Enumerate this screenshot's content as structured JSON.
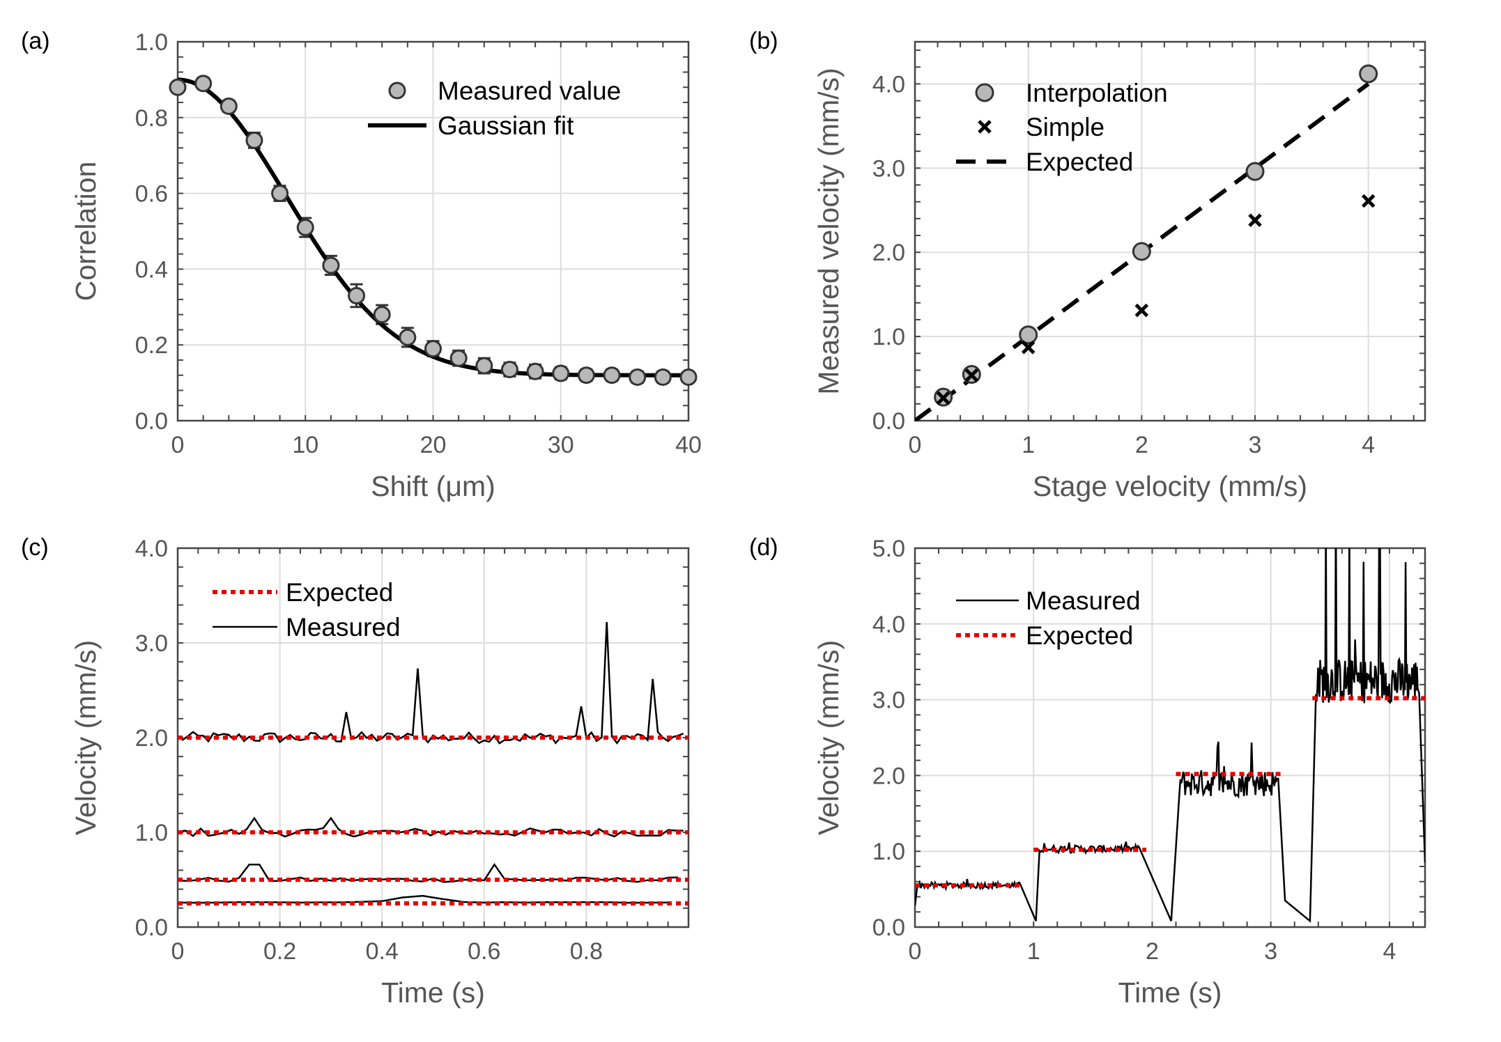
{
  "figure": {
    "panels": [
      "(a)",
      "(b)",
      "(c)",
      "(d)"
    ]
  },
  "chart_data": [
    {
      "id": "a",
      "type": "scatter",
      "panel_label": "(a)",
      "xlabel": "Shift (μm)",
      "ylabel": "Correlation",
      "xlim": [
        0,
        40
      ],
      "ylim": [
        0,
        1
      ],
      "xticks": [
        0,
        10,
        20,
        30,
        40
      ],
      "xtick_labels": [
        "0",
        "10",
        "20",
        "30",
        "40"
      ],
      "yticks": [
        0,
        0.2,
        0.4,
        0.6,
        0.8,
        1.0
      ],
      "ytick_labels": [
        "0.0",
        "0.2",
        "0.4",
        "0.6",
        "0.8",
        "1.0"
      ],
      "grid": true,
      "legend": [
        "Measured value",
        "Gaussian fit"
      ],
      "series": [
        {
          "name": "Measured value",
          "marker": "circle",
          "x": [
            0,
            2,
            4,
            6,
            8,
            10,
            12,
            14,
            16,
            18,
            20,
            22,
            24,
            26,
            28,
            30,
            32,
            34,
            36,
            38,
            40
          ],
          "y": [
            0.88,
            0.89,
            0.83,
            0.74,
            0.6,
            0.51,
            0.41,
            0.33,
            0.28,
            0.22,
            0.19,
            0.165,
            0.145,
            0.135,
            0.13,
            0.125,
            0.12,
            0.12,
            0.115,
            0.115,
            0.115
          ],
          "err": [
            0.012,
            0.015,
            0.015,
            0.02,
            0.02,
            0.025,
            0.025,
            0.03,
            0.025,
            0.025,
            0.02,
            0.02,
            0.02,
            0.018,
            0.018,
            0.016,
            0.015,
            0.015,
            0.015,
            0.015,
            0.01
          ]
        },
        {
          "name": "Gaussian fit",
          "type": "line",
          "model": "y = 0.12 + 0.78*exp(-x^2/(2*8.5^2))",
          "x": [
            0,
            2,
            4,
            6,
            8,
            10,
            12,
            14,
            16,
            18,
            20,
            22,
            24,
            26,
            28,
            30,
            32,
            34,
            36,
            38,
            40
          ],
          "y": [
            0.9,
            0.879,
            0.818,
            0.726,
            0.616,
            0.5,
            0.39,
            0.297,
            0.224,
            0.173,
            0.144,
            0.13,
            0.124,
            0.121,
            0.12,
            0.12,
            0.12,
            0.12,
            0.12,
            0.12,
            0.12
          ]
        }
      ]
    },
    {
      "id": "b",
      "type": "scatter",
      "panel_label": "(b)",
      "xlabel": "Stage velocity (mm/s)",
      "ylabel": "Measured velocity (mm/s)",
      "xlim": [
        0,
        4.5
      ],
      "ylim": [
        0,
        4.5
      ],
      "xticks": [
        0,
        1,
        2,
        3,
        4
      ],
      "xtick_labels": [
        "0",
        "1",
        "2",
        "3",
        "4"
      ],
      "yticks": [
        0,
        1,
        2,
        3,
        4
      ],
      "ytick_labels": [
        "0.0",
        "1.0",
        "2.0",
        "3.0",
        "4.0"
      ],
      "grid": true,
      "legend": [
        "Interpolation",
        "Simple",
        "Expected"
      ],
      "series": [
        {
          "name": "Interpolation",
          "marker": "circle",
          "x": [
            0.25,
            0.5,
            1,
            2,
            3,
            4
          ],
          "y": [
            0.28,
            0.55,
            1.02,
            2.01,
            2.96,
            4.12
          ]
        },
        {
          "name": "Simple",
          "marker": "x",
          "x": [
            0.25,
            0.5,
            1,
            2,
            3,
            4
          ],
          "y": [
            0.27,
            0.54,
            0.87,
            1.31,
            2.38,
            2.61
          ]
        },
        {
          "name": "Expected",
          "type": "line",
          "style": "dashed",
          "x": [
            0,
            4
          ],
          "y": [
            0,
            4
          ]
        }
      ]
    },
    {
      "id": "c",
      "type": "line",
      "panel_label": "(c)",
      "xlabel": "Time (s)",
      "ylabel": "Velocity (mm/s)",
      "xlim": [
        0,
        1
      ],
      "ylim": [
        0,
        4
      ],
      "xticks": [
        0,
        0.2,
        0.4,
        0.6,
        0.8
      ],
      "xtick_labels": [
        "0",
        "0.2",
        "0.4",
        "0.6",
        "0.8"
      ],
      "yticks": [
        0,
        1,
        2,
        3,
        4
      ],
      "ytick_labels": [
        "0.0",
        "1.0",
        "2.0",
        "3.0",
        "4.0"
      ],
      "grid": true,
      "legend": [
        "Expected",
        "Measured"
      ],
      "expected_levels": [
        2.0,
        1.0,
        0.5,
        0.25
      ],
      "measured_spikes": [
        {
          "level": 2.0,
          "t": 0.33,
          "v": 2.27
        },
        {
          "level": 2.0,
          "t": 0.47,
          "v": 2.73
        },
        {
          "level": 2.0,
          "t": 0.79,
          "v": 2.33
        },
        {
          "level": 2.0,
          "t": 0.845,
          "v": 3.22
        },
        {
          "level": 2.0,
          "t": 0.93,
          "v": 2.62
        }
      ]
    },
    {
      "id": "d",
      "type": "line",
      "panel_label": "(d)",
      "xlabel": "Time (s)",
      "ylabel": "Velocity (mm/s)",
      "xlim": [
        0,
        4.3
      ],
      "ylim": [
        0,
        5
      ],
      "xticks": [
        0,
        1,
        2,
        3,
        4
      ],
      "xtick_labels": [
        "0",
        "1",
        "2",
        "3",
        "4"
      ],
      "yticks": [
        0,
        1,
        2,
        3,
        4,
        5
      ],
      "ytick_labels": [
        "0.0",
        "1.0",
        "2.0",
        "3.0",
        "4.0",
        "5.0"
      ],
      "grid": true,
      "legend": [
        "Measured",
        "Expected"
      ],
      "expected_segments": [
        {
          "t0": 0.0,
          "t1": 0.9,
          "v": 0.55
        },
        {
          "t0": 1.0,
          "t1": 1.95,
          "v": 1.02
        },
        {
          "t0": 2.2,
          "t1": 3.1,
          "v": 2.02
        },
        {
          "t0": 3.35,
          "t1": 4.3,
          "v": 3.02
        }
      ]
    }
  ]
}
